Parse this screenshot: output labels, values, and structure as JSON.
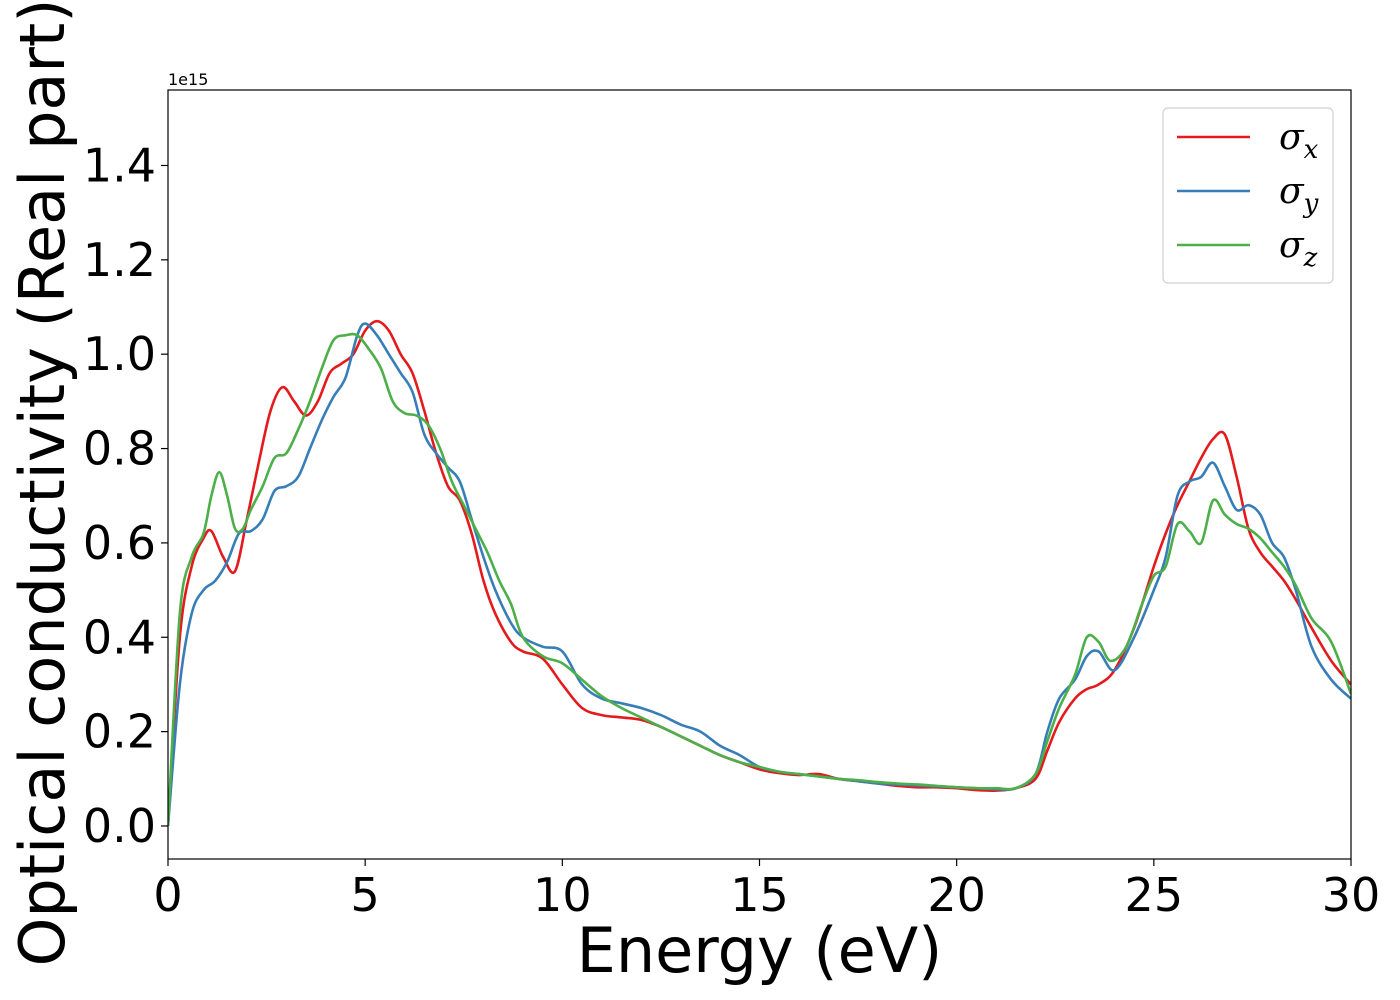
{
  "chart_data": {
    "type": "line",
    "xlabel": "Energy (eV)",
    "ylabel": "Optical conductivity (Real part)",
    "offset_text": "1e15",
    "xlim": [
      0,
      30
    ],
    "ylim": [
      -0.07,
      1.56
    ],
    "xticks": [
      0,
      5,
      10,
      15,
      20,
      25,
      30
    ],
    "xtick_labels": [
      "0",
      "5",
      "10",
      "15",
      "20",
      "25",
      "30"
    ],
    "yticks": [
      0.0,
      0.2,
      0.4,
      0.6,
      0.8,
      1.0,
      1.2,
      1.4
    ],
    "ytick_labels": [
      "0.0",
      "0.2",
      "0.4",
      "0.6",
      "0.8",
      "1.0",
      "1.2",
      "1.4"
    ],
    "grid": false,
    "legend": {
      "position": "top-right",
      "entries": [
        {
          "base": "σ",
          "sub": "x"
        },
        {
          "base": "σ",
          "sub": "y"
        },
        {
          "base": "σ",
          "sub": "z"
        }
      ]
    },
    "series": [
      {
        "color": "#e41a1c",
        "x": [
          0,
          0.3,
          0.6,
          0.9,
          1.1,
          1.4,
          1.7,
          2.0,
          2.3,
          2.6,
          2.9,
          3.2,
          3.5,
          3.8,
          4.1,
          4.4,
          4.7,
          5.0,
          5.3,
          5.6,
          5.9,
          6.2,
          6.5,
          6.8,
          7.1,
          7.4,
          7.7,
          8.0,
          8.3,
          8.7,
          9.0,
          9.5,
          10.0,
          10.5,
          11.0,
          11.5,
          12.0,
          12.5,
          13.0,
          13.5,
          14.0,
          14.5,
          15.0,
          15.5,
          16.0,
          16.5,
          17.0,
          17.5,
          18.0,
          18.5,
          19.0,
          19.5,
          20.0,
          20.5,
          21.0,
          21.5,
          22.0,
          22.3,
          22.6,
          23.0,
          23.3,
          23.6,
          24.0,
          24.5,
          25.0,
          25.3,
          25.6,
          25.9,
          26.2,
          26.5,
          26.8,
          27.1,
          27.4,
          27.7,
          28.0,
          28.3,
          28.6,
          29.0,
          29.5,
          30.0
        ],
        "y": [
          0.0,
          0.4,
          0.55,
          0.61,
          0.625,
          0.57,
          0.54,
          0.65,
          0.77,
          0.88,
          0.93,
          0.9,
          0.87,
          0.9,
          0.96,
          0.98,
          1.0,
          1.05,
          1.07,
          1.05,
          1.0,
          0.96,
          0.88,
          0.79,
          0.72,
          0.69,
          0.62,
          0.52,
          0.45,
          0.39,
          0.37,
          0.355,
          0.3,
          0.25,
          0.235,
          0.23,
          0.225,
          0.21,
          0.19,
          0.17,
          0.15,
          0.135,
          0.12,
          0.112,
          0.108,
          0.11,
          0.1,
          0.095,
          0.09,
          0.085,
          0.082,
          0.082,
          0.08,
          0.076,
          0.075,
          0.08,
          0.1,
          0.16,
          0.22,
          0.27,
          0.29,
          0.3,
          0.33,
          0.42,
          0.55,
          0.62,
          0.68,
          0.73,
          0.78,
          0.82,
          0.83,
          0.74,
          0.63,
          0.58,
          0.55,
          0.52,
          0.48,
          0.42,
          0.35,
          0.3
        ]
      },
      {
        "color": "#377eb8",
        "x": [
          0,
          0.3,
          0.6,
          0.9,
          1.2,
          1.5,
          1.8,
          2.1,
          2.4,
          2.7,
          3.0,
          3.3,
          3.6,
          3.9,
          4.2,
          4.5,
          4.8,
          5.0,
          5.3,
          5.6,
          5.9,
          6.2,
          6.5,
          6.8,
          7.1,
          7.4,
          7.7,
          8.0,
          8.3,
          8.7,
          9.0,
          9.5,
          10.0,
          10.5,
          11.0,
          11.5,
          12.0,
          12.5,
          13.0,
          13.5,
          14.0,
          14.5,
          15.0,
          15.5,
          16.0,
          16.5,
          17.0,
          17.5,
          18.0,
          18.5,
          19.0,
          19.5,
          20.0,
          20.5,
          21.0,
          21.5,
          22.0,
          22.3,
          22.6,
          23.0,
          23.3,
          23.6,
          24.0,
          24.5,
          25.0,
          25.3,
          25.6,
          25.9,
          26.2,
          26.5,
          26.8,
          27.1,
          27.4,
          27.7,
          28.0,
          28.3,
          28.6,
          29.0,
          29.5,
          30.0
        ],
        "y": [
          0.0,
          0.3,
          0.45,
          0.5,
          0.52,
          0.56,
          0.62,
          0.625,
          0.65,
          0.71,
          0.72,
          0.74,
          0.8,
          0.86,
          0.91,
          0.95,
          1.04,
          1.065,
          1.04,
          1.0,
          0.96,
          0.92,
          0.83,
          0.79,
          0.76,
          0.73,
          0.65,
          0.57,
          0.5,
          0.43,
          0.4,
          0.38,
          0.37,
          0.3,
          0.27,
          0.26,
          0.25,
          0.235,
          0.215,
          0.2,
          0.17,
          0.15,
          0.125,
          0.115,
          0.11,
          0.105,
          0.1,
          0.095,
          0.09,
          0.088,
          0.086,
          0.084,
          0.082,
          0.08,
          0.078,
          0.08,
          0.11,
          0.2,
          0.27,
          0.31,
          0.36,
          0.37,
          0.33,
          0.4,
          0.5,
          0.57,
          0.7,
          0.73,
          0.74,
          0.77,
          0.72,
          0.67,
          0.68,
          0.66,
          0.6,
          0.57,
          0.5,
          0.38,
          0.31,
          0.27
        ]
      },
      {
        "color": "#4daf4a",
        "x": [
          0,
          0.3,
          0.6,
          0.9,
          1.1,
          1.3,
          1.5,
          1.7,
          1.9,
          2.1,
          2.4,
          2.7,
          3.0,
          3.3,
          3.6,
          3.9,
          4.2,
          4.5,
          4.8,
          5.1,
          5.4,
          5.7,
          6.0,
          6.3,
          6.6,
          6.9,
          7.2,
          7.5,
          7.8,
          8.1,
          8.4,
          8.7,
          9.0,
          9.5,
          10.0,
          10.5,
          11.0,
          11.5,
          12.0,
          12.5,
          13.0,
          13.5,
          14.0,
          14.5,
          15.0,
          15.5,
          16.0,
          16.5,
          17.0,
          17.5,
          18.0,
          18.5,
          19.0,
          19.5,
          20.0,
          20.5,
          21.0,
          21.5,
          22.0,
          22.3,
          22.6,
          23.0,
          23.3,
          23.6,
          23.9,
          24.3,
          24.7,
          25.0,
          25.3,
          25.6,
          25.9,
          26.2,
          26.5,
          26.8,
          27.1,
          27.4,
          27.7,
          28.0,
          28.3,
          28.6,
          29.0,
          29.5,
          30.0
        ],
        "y": [
          0.0,
          0.45,
          0.57,
          0.62,
          0.7,
          0.75,
          0.7,
          0.63,
          0.63,
          0.67,
          0.72,
          0.78,
          0.79,
          0.84,
          0.9,
          0.97,
          1.03,
          1.04,
          1.04,
          1.01,
          0.97,
          0.9,
          0.875,
          0.87,
          0.85,
          0.8,
          0.73,
          0.68,
          0.63,
          0.58,
          0.52,
          0.47,
          0.4,
          0.36,
          0.345,
          0.31,
          0.275,
          0.25,
          0.23,
          0.21,
          0.19,
          0.17,
          0.15,
          0.135,
          0.125,
          0.115,
          0.11,
          0.105,
          0.1,
          0.097,
          0.093,
          0.09,
          0.088,
          0.085,
          0.082,
          0.08,
          0.08,
          0.08,
          0.11,
          0.18,
          0.25,
          0.32,
          0.4,
          0.39,
          0.35,
          0.38,
          0.47,
          0.53,
          0.55,
          0.64,
          0.625,
          0.6,
          0.69,
          0.66,
          0.64,
          0.63,
          0.61,
          0.58,
          0.55,
          0.51,
          0.44,
          0.39,
          0.28
        ]
      }
    ]
  }
}
